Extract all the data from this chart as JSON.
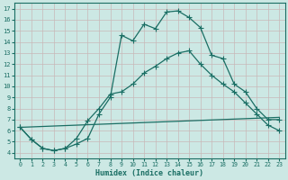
{
  "xlabel": "Humidex (Indice chaleur)",
  "bg_color": "#cce8e4",
  "grid_color": "#b8d8d4",
  "line_color": "#1a6e64",
  "xlim": [
    -0.5,
    23.5
  ],
  "ylim": [
    3.5,
    17.5
  ],
  "xticks": [
    0,
    1,
    2,
    3,
    4,
    5,
    6,
    7,
    8,
    9,
    10,
    11,
    12,
    13,
    14,
    15,
    16,
    17,
    18,
    19,
    20,
    21,
    22,
    23
  ],
  "yticks": [
    4,
    5,
    6,
    7,
    8,
    9,
    10,
    11,
    12,
    13,
    14,
    15,
    16,
    17
  ],
  "curve1_x": [
    0,
    1,
    2,
    3,
    4,
    5,
    6,
    7,
    8,
    9,
    10,
    11,
    12,
    13,
    14,
    15,
    16,
    17,
    18,
    19,
    20,
    21,
    22,
    23
  ],
  "curve1_y": [
    6.3,
    5.2,
    4.4,
    4.2,
    4.4,
    4.8,
    5.3,
    7.5,
    9.0,
    14.6,
    14.1,
    15.6,
    15.2,
    16.7,
    16.8,
    16.2,
    15.3,
    12.8,
    12.5,
    10.2,
    9.5,
    8.0,
    7.0,
    7.0
  ],
  "curve2_x": [
    0,
    1,
    2,
    3,
    4,
    5,
    6,
    7,
    8,
    9,
    10,
    11,
    12,
    13,
    14,
    15,
    16,
    17,
    18,
    19,
    20,
    21,
    22,
    23
  ],
  "curve2_y": [
    6.3,
    5.2,
    4.4,
    4.2,
    4.4,
    5.3,
    6.9,
    8.0,
    9.3,
    9.5,
    10.2,
    11.2,
    11.8,
    12.5,
    13.0,
    13.2,
    12.0,
    11.0,
    10.2,
    9.5,
    8.5,
    7.5,
    6.5,
    6.0
  ],
  "curve3_x": [
    0,
    23
  ],
  "curve3_y": [
    6.3,
    7.2
  ],
  "marker": "+",
  "marker_size": 4,
  "lw": 0.9
}
